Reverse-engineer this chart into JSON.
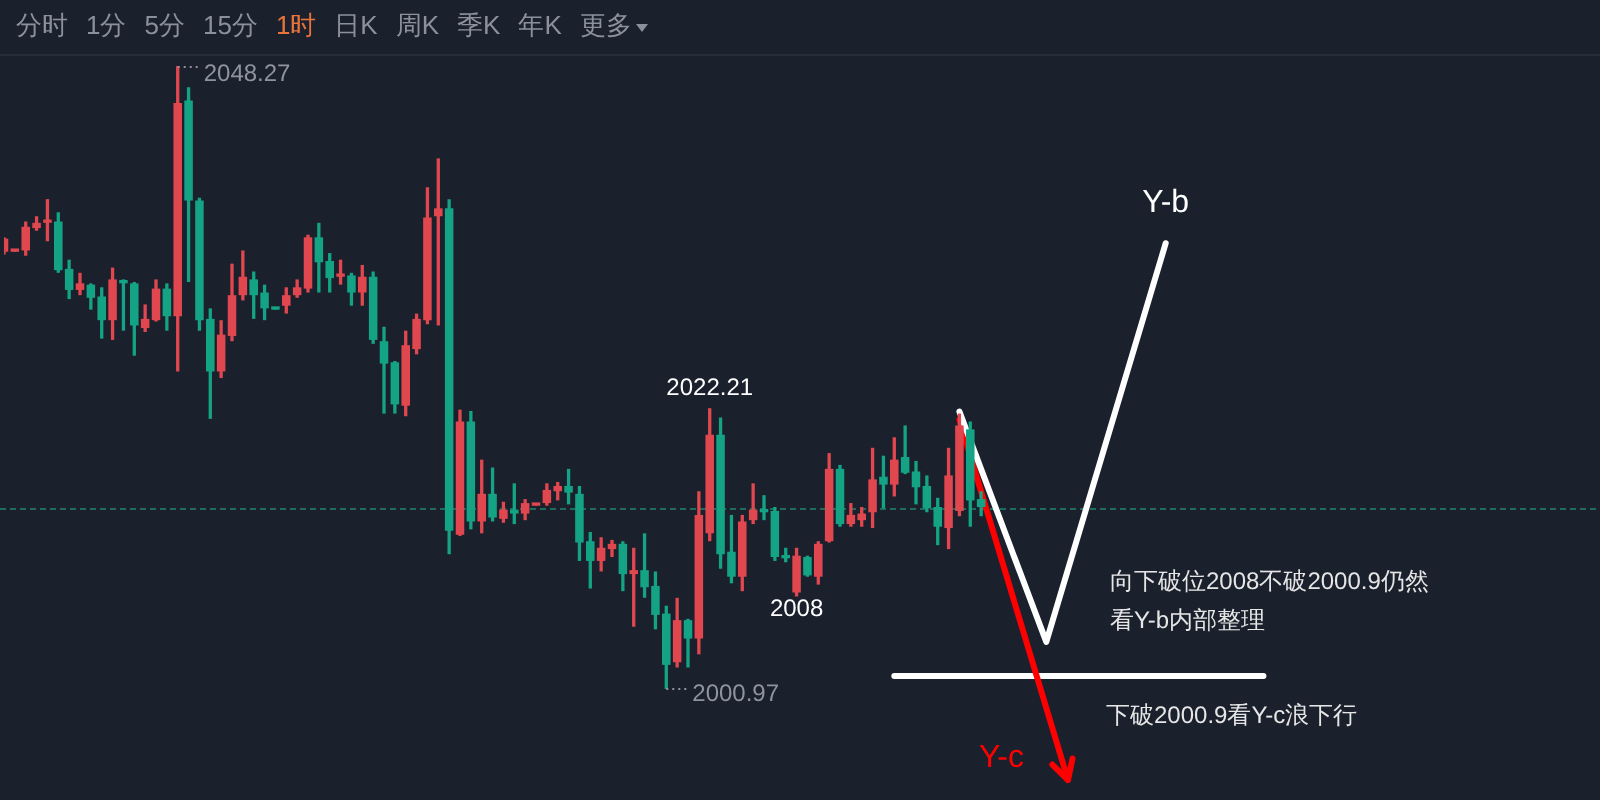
{
  "chart_data": {
    "type": "candlestick",
    "categories": [
      null,
      null,
      null,
      null,
      null,
      null,
      null,
      null,
      null,
      null,
      null,
      null,
      null,
      null,
      null,
      null,
      null,
      null,
      null,
      null,
      null,
      null,
      null,
      null,
      null,
      null,
      null,
      null,
      null,
      null,
      null,
      null,
      null,
      null,
      null,
      null,
      null,
      null,
      null,
      null,
      null,
      null,
      null,
      null,
      null,
      null,
      null,
      null,
      null,
      null,
      null,
      null,
      null,
      null,
      null,
      null,
      null,
      null,
      null,
      null,
      null,
      null,
      null,
      null,
      null,
      null,
      null,
      null,
      null,
      null,
      null,
      null,
      null,
      null,
      null,
      null,
      null,
      null,
      null,
      null,
      null,
      null,
      null,
      null,
      null,
      null,
      null,
      null,
      null,
      null,
      null,
      null,
      null,
      null,
      null,
      null,
      null,
      null,
      null,
      null,
      null,
      null,
      null,
      null,
      null,
      null,
      null,
      null,
      null,
      null,
      null,
      null,
      null,
      null,
      null,
      null,
      null,
      null,
      null,
      null,
      null,
      null,
      null,
      null,
      null,
      null,
      null,
      null,
      null,
      null,
      null,
      null,
      null,
      null,
      null,
      null,
      null,
      null,
      null,
      null,
      null,
      null,
      null,
      null,
      null,
      null,
      null,
      null
    ],
    "ohlc": [
      [
        2034.2,
        2035.2,
        2034.0,
        2035.1
      ],
      [
        2034.2,
        2034.3,
        2034.2,
        2034.3
      ],
      [
        2034.3,
        2036.4,
        2033.9,
        2036.0
      ],
      [
        2036.0,
        2036.8,
        2035.8,
        2036.3
      ],
      [
        2036.4,
        2038.1,
        2035.0,
        2036.5
      ],
      [
        2036.4,
        2037.1,
        2032.6,
        2032.8
      ],
      [
        2032.8,
        2033.5,
        2030.6,
        2031.3
      ],
      [
        2031.3,
        2032.5,
        2030.9,
        2031.7
      ],
      [
        2031.6,
        2031.7,
        2029.8,
        2030.7
      ],
      [
        2030.7,
        2031.4,
        2027.6,
        2029.0
      ],
      [
        2029.0,
        2032.9,
        2027.5,
        2032.0
      ],
      [
        2031.9,
        2032.0,
        2028.2,
        2031.8
      ],
      [
        2031.7,
        2031.8,
        2026.3,
        2028.6
      ],
      [
        2028.4,
        2030.1,
        2028.1,
        2029.0
      ],
      [
        2029.0,
        2032.0,
        2028.9,
        2031.3
      ],
      [
        2031.3,
        2031.7,
        2028.2,
        2029.3
      ],
      [
        2029.3,
        2048.27,
        2025.1,
        2045.4
      ],
      [
        2045.6,
        2046.6,
        2031.9,
        2038.1
      ],
      [
        2038.0,
        2038.2,
        2028.2,
        2029.0
      ],
      [
        2029.0,
        2029.8,
        2021.5,
        2025.1
      ],
      [
        2025.1,
        2028.9,
        2024.6,
        2027.8
      ],
      [
        2027.8,
        2033.2,
        2027.4,
        2030.8
      ],
      [
        2030.9,
        2034.2,
        2030.5,
        2032.2
      ],
      [
        2032.0,
        2032.6,
        2029.1,
        2030.9
      ],
      [
        2031.0,
        2031.6,
        2029.0,
        2029.9
      ],
      [
        2029.9,
        2029.9,
        2029.8,
        2029.8
      ],
      [
        2030.1,
        2031.4,
        2029.5,
        2030.8
      ],
      [
        2030.9,
        2032.0,
        2030.7,
        2031.4
      ],
      [
        2031.4,
        2035.4,
        2031.1,
        2035.2
      ],
      [
        2035.2,
        2036.3,
        2031.1,
        2033.4
      ],
      [
        2033.4,
        2034.0,
        2031.1,
        2032.2
      ],
      [
        2032.3,
        2033.5,
        2031.7,
        2032.4
      ],
      [
        2032.3,
        2032.5,
        2030.1,
        2031.1
      ],
      [
        2031.1,
        2033.1,
        2030.1,
        2032.2
      ],
      [
        2032.2,
        2032.6,
        2027.2,
        2027.5
      ],
      [
        2027.3,
        2028.4,
        2021.9,
        2025.7
      ],
      [
        2025.7,
        2025.8,
        2021.9,
        2022.6
      ],
      [
        2022.5,
        2028.1,
        2021.7,
        2027.0
      ],
      [
        2026.8,
        2029.4,
        2026.4,
        2029.0
      ],
      [
        2029.0,
        2039.0,
        2028.7,
        2036.7
      ],
      [
        2036.9,
        2041.2,
        2028.6,
        2037.4
      ],
      [
        2037.4,
        2038.1,
        2011.2,
        2013.0
      ],
      [
        2012.7,
        2022.1,
        2012.6,
        2021.2
      ],
      [
        2021.2,
        2022.0,
        2013.1,
        2013.7
      ],
      [
        2013.7,
        2018.3,
        2012.8,
        2015.7
      ],
      [
        2015.7,
        2017.7,
        2013.7,
        2014.0
      ],
      [
        2013.9,
        2015.1,
        2013.6,
        2014.5
      ],
      [
        2014.5,
        2016.5,
        2013.5,
        2014.3
      ],
      [
        2014.3,
        2015.3,
        2013.8,
        2015.0
      ],
      [
        2014.9,
        2015.0,
        2014.9,
        2015.0
      ],
      [
        2015.1,
        2016.5,
        2014.9,
        2016.0
      ],
      [
        2016.0,
        2016.6,
        2015.3,
        2016.3
      ],
      [
        2016.3,
        2017.6,
        2015.0,
        2015.9
      ],
      [
        2015.7,
        2016.3,
        2010.7,
        2012.1
      ],
      [
        2012.1,
        2012.8,
        2008.6,
        2010.7
      ],
      [
        2010.7,
        2012.4,
        2009.9,
        2011.6
      ],
      [
        2011.6,
        2012.2,
        2011.0,
        2011.9
      ],
      [
        2011.9,
        2012.1,
        2008.4,
        2009.7
      ],
      [
        2009.7,
        2011.6,
        2005.7,
        2009.9
      ],
      [
        2009.9,
        2012.7,
        2007.9,
        2008.7
      ],
      [
        2008.7,
        2009.8,
        2005.5,
        2006.6
      ],
      [
        2006.6,
        2007.2,
        2000.97,
        2002.8
      ],
      [
        2003.0,
        2007.8,
        2002.6,
        2006.1
      ],
      [
        2006.1,
        2006.2,
        2002.6,
        2004.8
      ],
      [
        2004.8,
        2015.9,
        2003.6,
        2014.1
      ],
      [
        2012.8,
        2022.21,
        2012.2,
        2020.2
      ],
      [
        2020.2,
        2021.5,
        2010.1,
        2011.2
      ],
      [
        2011.3,
        2014.1,
        2009.0,
        2009.5
      ],
      [
        2009.5,
        2014.1,
        2008.4,
        2013.6
      ],
      [
        2013.8,
        2016.5,
        2013.5,
        2014.5
      ],
      [
        2014.5,
        2015.6,
        2013.8,
        2014.4
      ],
      [
        2014.4,
        2014.7,
        2010.7,
        2011.0
      ],
      [
        2011.0,
        2011.6,
        2010.6,
        2010.9
      ],
      [
        2008.3,
        2011.6,
        2008,
        2011.0
      ],
      [
        2010.9,
        2011.0,
        2009.5,
        2009.6
      ],
      [
        2009.5,
        2012.1,
        2008.9,
        2011.9
      ],
      [
        2012.2,
        2018.8,
        2012.1,
        2017.6
      ],
      [
        2017.6,
        2017.9,
        2013.3,
        2013.5
      ],
      [
        2013.5,
        2015.0,
        2013.3,
        2014.1
      ],
      [
        2013.8,
        2014.7,
        2013.3,
        2014.2
      ],
      [
        2014.4,
        2019.2,
        2013.2,
        2016.8
      ],
      [
        2017.0,
        2018.6,
        2014.7,
        2016.5
      ],
      [
        2016.5,
        2020.0,
        2015.6,
        2018.3
      ],
      [
        2018.5,
        2020.9,
        2017.3,
        2017.4
      ],
      [
        2017.4,
        2018.2,
        2015.0,
        2016.3
      ],
      [
        2016.3,
        2017.1,
        2014.4,
        2014.7
      ],
      [
        2014.7,
        2015.4,
        2011.9,
        2013.3
      ],
      [
        2013.2,
        2019.2,
        2011.6,
        2017.1
      ],
      [
        2014.5,
        2021.8,
        2014.1,
        2020.9
      ],
      [
        2020.6,
        2021.2,
        2013.3,
        2015.3
      ],
      [
        2015.3,
        2015.9,
        2014.1,
        2014.8
      ],
      null,
      null,
      null,
      null,
      null,
      null,
      null,
      null,
      null,
      null,
      null,
      null,
      null,
      null,
      null,
      null,
      null,
      null,
      null,
      null,
      null,
      null,
      null,
      null,
      null,
      null,
      null,
      null,
      null,
      null,
      null,
      null,
      null,
      null,
      null,
      null,
      null,
      null,
      null,
      null,
      null,
      null,
      null,
      null,
      null,
      null,
      null,
      null,
      null,
      null,
      null,
      null,
      null,
      null,
      null,
      null,
      null
    ],
    "colors": [
      "#e0474f",
      "#e0474f",
      "#e0474f",
      "#e0474f",
      "#e0474f",
      "#14a384",
      "#14a384",
      "#e0474f",
      "#14a384",
      "#14a384",
      "#e0474f",
      "#14a384",
      "#14a384",
      "#e0474f",
      "#e0474f",
      "#14a384",
      "#e0474f",
      "#14a384",
      "#14a384",
      "#14a384",
      "#e0474f",
      "#e0474f",
      "#e0474f",
      "#14a384",
      "#14a384",
      "#14a384",
      "#e0474f",
      "#e0474f",
      "#e0474f",
      "#14a384",
      "#14a384",
      "#e0474f",
      "#14a384",
      "#e0474f",
      "#14a384",
      "#14a384",
      "#14a384",
      "#e0474f",
      "#e0474f",
      "#e0474f",
      "#e0474f",
      "#14a384",
      "#e0474f",
      "#14a384",
      "#e0474f",
      "#14a384",
      "#e0474f",
      "#14a384",
      "#e0474f",
      "#e0474f",
      "#e0474f",
      "#e0474f",
      "#14a384",
      "#14a384",
      "#14a384",
      "#e0474f",
      "#e0474f",
      "#14a384",
      "#e0474f",
      "#14a384",
      "#14a384",
      "#14a384",
      "#e0474f",
      "#14a384",
      "#e0474f",
      "#e0474f",
      "#14a384",
      "#14a384",
      "#e0474f",
      "#e0474f",
      "#14a384",
      "#14a384",
      "#14a384",
      "#e0474f",
      "#14a384",
      "#e0474f",
      "#e0474f",
      "#14a384",
      "#e0474f",
      "#e0474f",
      "#e0474f",
      "#14a384",
      "#e0474f",
      "#14a384",
      "#14a384",
      "#14a384",
      "#14a384",
      "#e0474f",
      "#e0474f",
      "#14a384",
      "#14a384",
      null,
      null,
      null,
      null,
      null,
      null,
      null,
      null,
      null,
      null,
      null,
      null,
      null,
      null,
      null,
      null,
      null,
      null,
      null,
      null,
      null,
      null,
      null,
      null,
      null,
      null,
      null,
      null,
      null,
      null,
      null,
      null,
      null,
      null,
      null,
      null,
      null,
      null,
      null,
      null,
      null,
      null,
      null,
      null,
      null,
      null,
      null,
      null,
      null,
      null,
      null,
      null,
      null,
      null,
      null,
      null,
      null
    ],
    "series": [
      {
        "type": "line",
        "name": "Y-b",
        "color": "#ffffff",
        "values": [
          null,
          null,
          null,
          null,
          null,
          null,
          null,
          null,
          null,
          null,
          null,
          null,
          null,
          null,
          null,
          null,
          null,
          null,
          null,
          null,
          null,
          null,
          null,
          null,
          null,
          null,
          null,
          null,
          null,
          null,
          null,
          null,
          null,
          null,
          null,
          null,
          null,
          null,
          null,
          null,
          null,
          null,
          null,
          null,
          null,
          null,
          null,
          null,
          null,
          null,
          null,
          null,
          null,
          null,
          null,
          null,
          null,
          null,
          null,
          null,
          null,
          null,
          null,
          null,
          null,
          null,
          null,
          null,
          null,
          null,
          null,
          null,
          null,
          null,
          null,
          null,
          null,
          null,
          null,
          null,
          null,
          null,
          null,
          null,
          null,
          null,
          null,
          null,
          2022.0,
          null,
          null,
          null,
          null,
          null,
          null,
          null,
          2004.5,
          null,
          null,
          null,
          null,
          null,
          null,
          null,
          null,
          null,
          null,
          2034.8,
          null,
          null,
          null,
          null,
          null,
          null,
          null,
          null,
          null,
          null,
          null,
          null,
          null,
          null,
          null,
          null,
          null,
          null,
          null,
          null,
          null,
          null,
          null,
          null,
          null,
          null,
          null,
          null,
          null,
          null,
          null,
          null,
          null,
          null,
          null,
          null,
          null,
          null,
          null,
          null
        ]
      },
      {
        "type": "line",
        "name": "Y-c",
        "color": "#ff0000",
        "values": [
          null,
          null,
          null,
          null,
          null,
          null,
          null,
          null,
          null,
          null,
          null,
          null,
          null,
          null,
          null,
          null,
          null,
          null,
          null,
          null,
          null,
          null,
          null,
          null,
          null,
          null,
          null,
          null,
          null,
          null,
          null,
          null,
          null,
          null,
          null,
          null,
          null,
          null,
          null,
          null,
          null,
          null,
          null,
          null,
          null,
          null,
          null,
          null,
          null,
          null,
          null,
          null,
          null,
          null,
          null,
          null,
          null,
          null,
          null,
          null,
          null,
          null,
          null,
          null,
          null,
          null,
          null,
          null,
          null,
          null,
          null,
          null,
          null,
          null,
          null,
          null,
          null,
          null,
          null,
          null,
          null,
          null,
          null,
          null,
          null,
          null,
          null,
          null,
          2021.4,
          null,
          null,
          null,
          null,
          null,
          null,
          null,
          null,
          null,
          1994.0,
          null,
          null,
          null,
          null,
          null,
          null,
          null,
          null,
          null,
          null,
          null,
          null,
          null,
          null,
          null,
          null,
          null,
          null,
          null,
          null,
          null,
          null,
          null,
          null,
          null,
          null,
          null,
          null,
          null,
          null,
          null,
          null,
          null,
          null,
          null,
          null,
          null,
          null,
          null,
          null,
          null,
          null,
          null,
          null,
          null,
          null,
          null,
          null,
          null
        ]
      },
      {
        "type": "line",
        "color": "#ffffff",
        "values": [
          null,
          null,
          null,
          null,
          null,
          null,
          null,
          null,
          null,
          null,
          null,
          null,
          null,
          null,
          null,
          null,
          null,
          null,
          null,
          null,
          null,
          null,
          null,
          null,
          null,
          null,
          null,
          null,
          null,
          null,
          null,
          null,
          null,
          null,
          null,
          null,
          null,
          null,
          null,
          null,
          null,
          null,
          null,
          null,
          null,
          null,
          null,
          null,
          null,
          null,
          null,
          null,
          null,
          null,
          null,
          null,
          null,
          null,
          null,
          null,
          null,
          null,
          null,
          null,
          null,
          null,
          null,
          null,
          null,
          null,
          null,
          null,
          null,
          null,
          null,
          null,
          null,
          null,
          null,
          null,
          null,
          null,
          2001.9,
          null,
          null,
          null,
          null,
          null,
          null,
          null,
          null,
          null,
          null,
          null,
          null,
          null,
          null,
          null,
          null,
          null,
          null,
          null,
          null,
          null,
          null,
          null,
          null,
          null,
          null,
          null,
          null,
          null,
          null,
          null,
          null,
          null,
          2001.9,
          null,
          null,
          null,
          null,
          null,
          null,
          null,
          null,
          null,
          null,
          null,
          null,
          null,
          null,
          null,
          null,
          null,
          null,
          null,
          null,
          null,
          null,
          null,
          null,
          null,
          null,
          null,
          null,
          null,
          null,
          null
        ]
      }
    ],
    "ref_lines": [
      {
        "axis": "y",
        "value": 2014.6,
        "color": "#1f6b5c",
        "line_style": "dashed"
      }
    ],
    "annotations": [
      "分时",
      "1分",
      "5分",
      "15分",
      "1时",
      "日K",
      "周K",
      "季K",
      "年K",
      "更多",
      "2048.27",
      "2000.97",
      {
        "text": "2022.21",
        "y": 2022.21
      },
      {
        "text": "2008",
        "y": 2008
      },
      "向下破位2008不破2000.9仍然看Y-b内部整理",
      "下破2000.9看Y-c浪下行"
    ],
    "tick_labels": false
  }
}
